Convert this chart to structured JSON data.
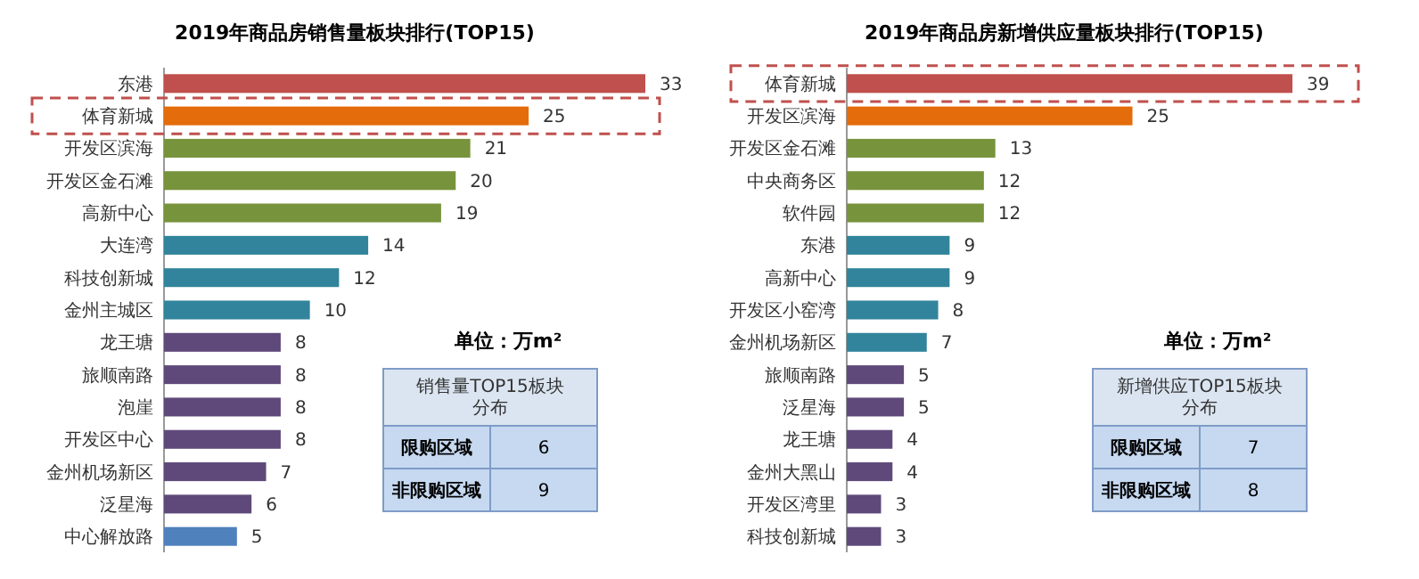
{
  "chart_data": [
    {
      "type": "bar",
      "orientation": "horizontal",
      "title": "2019年商品房销售量板块排行(TOP15)",
      "categories": [
        "东港",
        "体育新城",
        "开发区滨海",
        "开发区金石滩",
        "高新中心",
        "大连湾",
        "科技创新城",
        "金州主城区",
        "龙王塘",
        "旅顺南路",
        "泡崖",
        "开发区中心",
        "金州机场新区",
        "泛星海",
        "中心解放路"
      ],
      "values": [
        33,
        25,
        21,
        20,
        19,
        14,
        12,
        10,
        8,
        8,
        8,
        8,
        7,
        6,
        5
      ],
      "colors": [
        "#c0504d",
        "#e46c0a",
        "#77933c",
        "#77933c",
        "#77933c",
        "#31849b",
        "#31849b",
        "#31849b",
        "#5f497a",
        "#5f497a",
        "#5f497a",
        "#5f497a",
        "#5f497a",
        "#5f497a",
        "#4f81bd"
      ],
      "data_labels": true,
      "annotations": [
        "单位：万m²",
        "销售量TOP15板块分布",
        "限购区域",
        "6",
        "非限购区域",
        "9"
      ]
    },
    {
      "type": "bar",
      "orientation": "horizontal",
      "title": "2019年商品房新增供应量板块排行(TOP15)",
      "categories": [
        "体育新城",
        "开发区滨海",
        "开发区金石滩",
        "中央商务区",
        "软件园",
        "东港",
        "高新中心",
        "开发区小窑湾",
        "金州机场新区",
        "旅顺南路",
        "泛星海",
        "龙王塘",
        "金州大黑山",
        "开发区湾里",
        "科技创新城"
      ],
      "values": [
        39,
        25,
        13,
        12,
        12,
        9,
        9,
        8,
        7,
        5,
        5,
        4,
        4,
        3,
        3
      ],
      "colors": [
        "#c0504d",
        "#e46c0a",
        "#77933c",
        "#77933c",
        "#77933c",
        "#31849b",
        "#31849b",
        "#31849b",
        "#31849b",
        "#5f497a",
        "#5f497a",
        "#5f497a",
        "#5f497a",
        "#5f497a",
        "#5f497a"
      ],
      "data_labels": true,
      "annotations": [
        "单位：万m²",
        "新增供应TOP15板块分布",
        "限购区域",
        "7",
        "非限购区域",
        "8"
      ]
    }
  ]
}
